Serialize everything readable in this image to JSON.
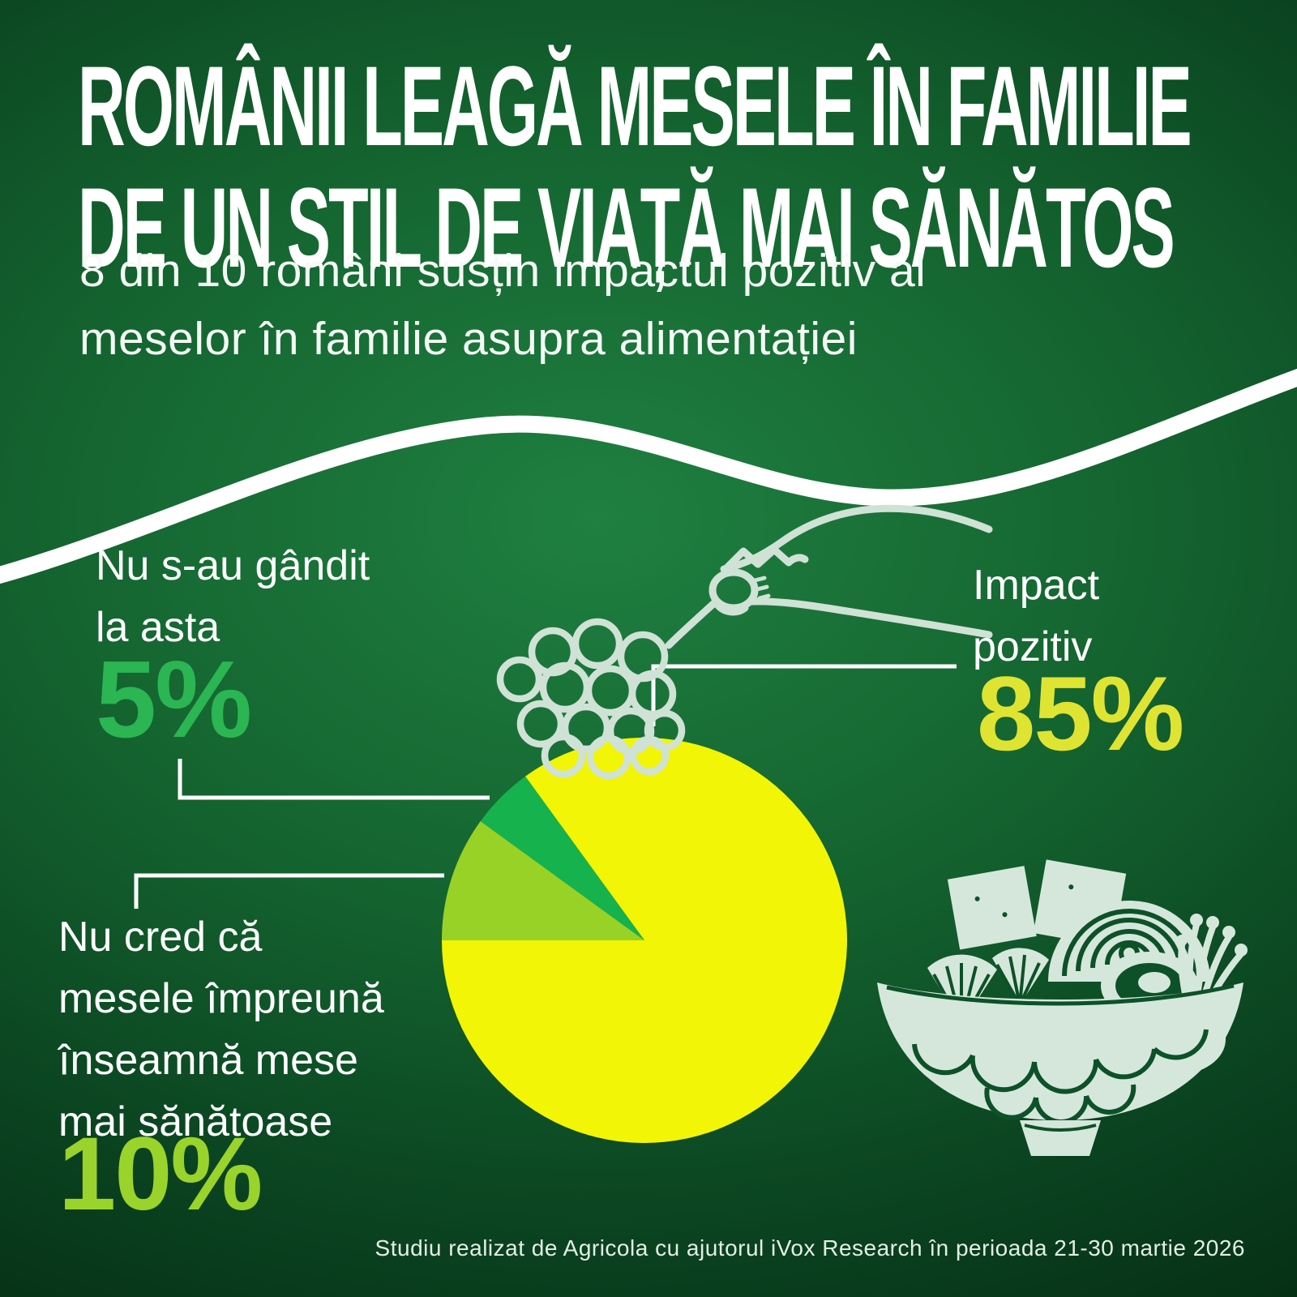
{
  "header": {
    "title_lines": [
      "ROMÂNII LEAGĂ MESELE ÎN FAMILIE",
      "DE UN STIL DE VIAȚĂ MAI SĂNĂTOS"
    ],
    "subtitle_lines": [
      "8 din 10 români susțin impactul pozitiv al",
      "meselor în familie asupra alimentației"
    ]
  },
  "chart_data": {
    "type": "pie",
    "slices": [
      {
        "label": "Impact pozitiv",
        "value": 85,
        "color": "#f2f505"
      },
      {
        "label": "Nu cred că mesele împreună înseamnă mese mai sănătoase",
        "value": 10,
        "color": "#98d226"
      },
      {
        "label": "Nu s-au gândit la asta",
        "value": 5,
        "color": "#16b24e"
      }
    ],
    "start_angle_deg": 126,
    "direction": "clockwise",
    "legend_position": "callouts"
  },
  "callouts": {
    "positive": {
      "line1": "Impact",
      "line2": "pozitiv",
      "pct": "85%"
    },
    "not_thought": {
      "line1": "Nu s-au gândit",
      "line2": "la asta",
      "pct": "5%"
    },
    "not_believe": {
      "line1": "Nu cred că",
      "line2": "mesele împreună",
      "line3": "înseamnă mese",
      "line4": "mai sănătoase",
      "pct": "10%"
    }
  },
  "footer": {
    "source": "Studiu realizat de Agricola cu ajutorul iVox Research în perioada 21-30 martie 2026"
  },
  "colors": {
    "background_center": "#1f8041",
    "background_edge": "#03230c",
    "wave": "#ffffff",
    "illustration": "#cfe2d5",
    "pct_85": "#dfe433",
    "pct_10": "#9ad32b",
    "pct_5": "#2cb553"
  }
}
